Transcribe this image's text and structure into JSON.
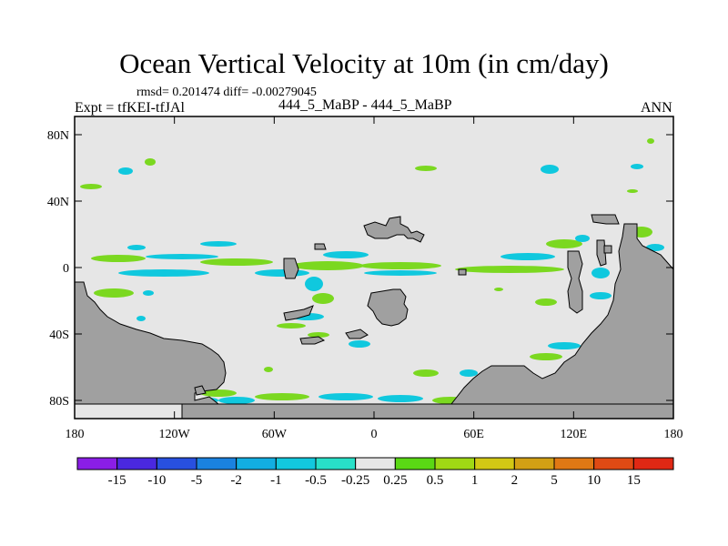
{
  "title": "Ocean Vertical Velocity at 10m (in cm/day)",
  "stats": "rmsd= 0.201474 diff= -0.00279045",
  "expt": "Expt = tfKEI-tfJAl",
  "case_label": "444_5_MaBP - 444_5_MaBP",
  "season": "ANN",
  "colors": {
    "ocean": "#e6e6e6",
    "land": "#a0a0a0",
    "cyan": "#10c8de",
    "green": "#7bd820"
  },
  "map": {
    "lon_ticks": [
      "180",
      "120W",
      "60W",
      "0",
      "60E",
      "120E",
      "180"
    ],
    "lat_ticks": [
      "80N",
      "40N",
      "0",
      "40S",
      "80S"
    ]
  },
  "colorbar": {
    "labels": [
      "-15",
      "-10",
      "-5",
      "-2",
      "-1",
      "-0.5",
      "-0.25",
      "0.25",
      "0.5",
      "1",
      "2",
      "5",
      "10",
      "15"
    ],
    "colors": [
      "#8a1ee6",
      "#4a28e0",
      "#2850e0",
      "#1a82e0",
      "#12aee2",
      "#12c8de",
      "#28e0c8",
      "#e6e6e6",
      "#5ad814",
      "#a0d814",
      "#d2c814",
      "#d2a014",
      "#e07814",
      "#e04a14",
      "#e02814"
    ]
  }
}
